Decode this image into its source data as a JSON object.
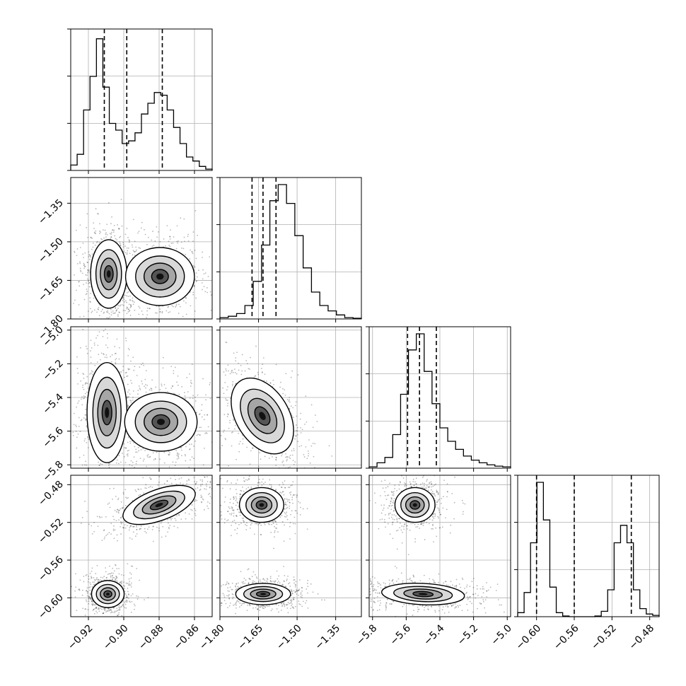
{
  "chart_data": {
    "type": "corner",
    "title": "",
    "parameters": [
      {
        "range": [
          -0.93,
          -0.85
        ],
        "ticks": [
          -0.92,
          -0.9,
          -0.88,
          -0.86
        ],
        "tick_labels": [
          "−0.92",
          "−0.90",
          "−0.88",
          "−0.86"
        ],
        "hist": [
          0.04,
          0.12,
          0.45,
          0.7,
          0.98,
          0.62,
          0.35,
          0.3,
          0.2,
          0.22,
          0.28,
          0.42,
          0.5,
          0.58,
          0.56,
          0.45,
          0.32,
          0.2,
          0.1,
          0.07,
          0.03,
          0.01
        ],
        "quantiles": [
          -0.911,
          -0.8983,
          -0.8782
        ]
      },
      {
        "range": [
          -1.8,
          -1.25
        ],
        "ticks": [
          -1.8,
          -1.65,
          -1.5,
          -1.35
        ],
        "tick_labels": [
          "−1.80",
          "−1.65",
          "−1.50",
          "−1.35"
        ],
        "hist": [
          0.01,
          0.02,
          0.04,
          0.1,
          0.28,
          0.55,
          0.88,
          1.0,
          0.86,
          0.62,
          0.38,
          0.2,
          0.1,
          0.06,
          0.03,
          0.01,
          0.005
        ],
        "quantiles": [
          -1.6752,
          -1.6325,
          -1.582
        ]
      },
      {
        "range": [
          -5.82,
          -4.98
        ],
        "ticks": [
          -5.8,
          -5.6,
          -5.4,
          -5.2,
          -5.0
        ],
        "tick_labels": [
          "−5.8",
          "−5.6",
          "−5.4",
          "−5.2",
          "−5.0"
        ],
        "hist": [
          0.01,
          0.04,
          0.08,
          0.25,
          0.55,
          0.88,
          1.0,
          0.72,
          0.48,
          0.3,
          0.2,
          0.14,
          0.09,
          0.06,
          0.04,
          0.025,
          0.015,
          0.01
        ],
        "quantiles": [
          -5.592,
          -5.521,
          -5.421
        ]
      },
      {
        "range": [
          -0.62,
          -0.47
        ],
        "ticks": [
          -0.6,
          -0.56,
          -0.52,
          -0.48
        ],
        "tick_labels": [
          "−0.60",
          "−0.56",
          "−0.52",
          "−0.48"
        ],
        "hist": [
          0.03,
          0.18,
          0.55,
          1.0,
          0.72,
          0.22,
          0.03,
          0.005,
          0.0,
          0.0,
          0.0,
          0.0,
          0.005,
          0.04,
          0.2,
          0.55,
          0.68,
          0.55,
          0.2,
          0.06,
          0.02,
          0.01
        ],
        "quantiles": [
          -0.6,
          -0.56,
          -0.4995
        ]
      }
    ],
    "pairs": [
      {
        "row": 1,
        "col": 0,
        "modes": [
          {
            "cx": -0.9085,
            "cy": -1.625,
            "rx": 0.005,
            "ry": 0.065,
            "tilt": 0
          },
          {
            "cx": -0.8795,
            "cy": -1.635,
            "rx": 0.0095,
            "ry": 0.055,
            "tilt": 0
          }
        ],
        "bridge": true
      },
      {
        "row": 2,
        "col": 0,
        "modes": [
          {
            "cx": -0.9095,
            "cy": -5.49,
            "rx": 0.0055,
            "ry": 0.145,
            "tilt": 0
          },
          {
            "cx": -0.879,
            "cy": -5.545,
            "rx": 0.01,
            "ry": 0.085,
            "tilt": 0
          }
        ],
        "bridge": true
      },
      {
        "row": 2,
        "col": 1,
        "modes": [
          {
            "cx": -1.635,
            "cy": -5.51,
            "rx": 0.05,
            "ry": 0.12,
            "tilt": 0.55
          }
        ],
        "bridge": false
      },
      {
        "row": 3,
        "col": 0,
        "modes": [
          {
            "cx": -0.88,
            "cy": -0.5015,
            "rx": 0.0105,
            "ry": 0.008,
            "tilt": 0.35
          },
          {
            "cx": -0.909,
            "cy": -0.596,
            "rx": 0.0045,
            "ry": 0.007,
            "tilt": 0
          }
        ],
        "bridge": false
      },
      {
        "row": 3,
        "col": 1,
        "modes": [
          {
            "cx": -1.638,
            "cy": -0.5015,
            "rx": 0.042,
            "ry": 0.009,
            "tilt": 0
          },
          {
            "cx": -1.632,
            "cy": -0.596,
            "rx": 0.052,
            "ry": 0.0055,
            "tilt": 0
          }
        ],
        "bridge": false
      },
      {
        "row": 3,
        "col": 2,
        "modes": [
          {
            "cx": -5.548,
            "cy": -0.5015,
            "rx": 0.058,
            "ry": 0.009,
            "tilt": 0
          },
          {
            "cx": -5.5,
            "cy": -0.596,
            "rx": 0.12,
            "ry": 0.0055,
            "tilt": -0.05
          }
        ],
        "bridge": false
      }
    ],
    "grid": true
  }
}
